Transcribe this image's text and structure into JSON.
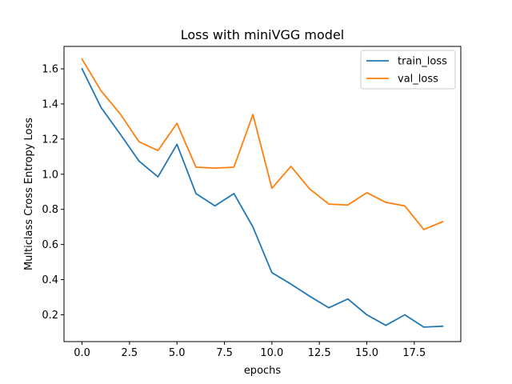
{
  "chart_data": {
    "type": "line",
    "title": "Loss with miniVGG model",
    "xlabel": "epochs",
    "ylabel": "Multiclass Cross Entropy Loss",
    "xlim": [
      -0.95,
      19.95
    ],
    "ylim": [
      0.0475,
      1.7275
    ],
    "x_ticks": [
      0.0,
      2.5,
      5.0,
      7.5,
      10.0,
      12.5,
      15.0,
      17.5
    ],
    "x_tick_labels": [
      "0.0",
      "2.5",
      "5.0",
      "7.5",
      "10.0",
      "12.5",
      "15.0",
      "17.5"
    ],
    "y_ticks": [
      0.2,
      0.4,
      0.6,
      0.8,
      1.0,
      1.2,
      1.4,
      1.6
    ],
    "y_tick_labels": [
      "0.2",
      "0.4",
      "0.6",
      "0.8",
      "1.0",
      "1.2",
      "1.4",
      "1.6"
    ],
    "grid": false,
    "legend_position": "top-right",
    "x": [
      0,
      1,
      2,
      3,
      4,
      5,
      6,
      7,
      8,
      9,
      10,
      11,
      12,
      13,
      14,
      15,
      16,
      17,
      18,
      19
    ],
    "series": [
      {
        "name": "train_loss",
        "color": "#1f77b4",
        "values": [
          1.6,
          1.38,
          1.23,
          1.075,
          0.985,
          1.17,
          0.89,
          0.82,
          0.89,
          0.7,
          0.44,
          0.375,
          0.305,
          0.24,
          0.29,
          0.2,
          0.14,
          0.2,
          0.13,
          0.135
        ]
      },
      {
        "name": "val_loss",
        "color": "#ff7f0e",
        "values": [
          1.655,
          1.475,
          1.345,
          1.185,
          1.135,
          1.29,
          1.04,
          1.035,
          1.04,
          1.34,
          0.92,
          1.045,
          0.915,
          0.83,
          0.825,
          0.895,
          0.84,
          0.82,
          0.685,
          0.73
        ]
      }
    ]
  }
}
